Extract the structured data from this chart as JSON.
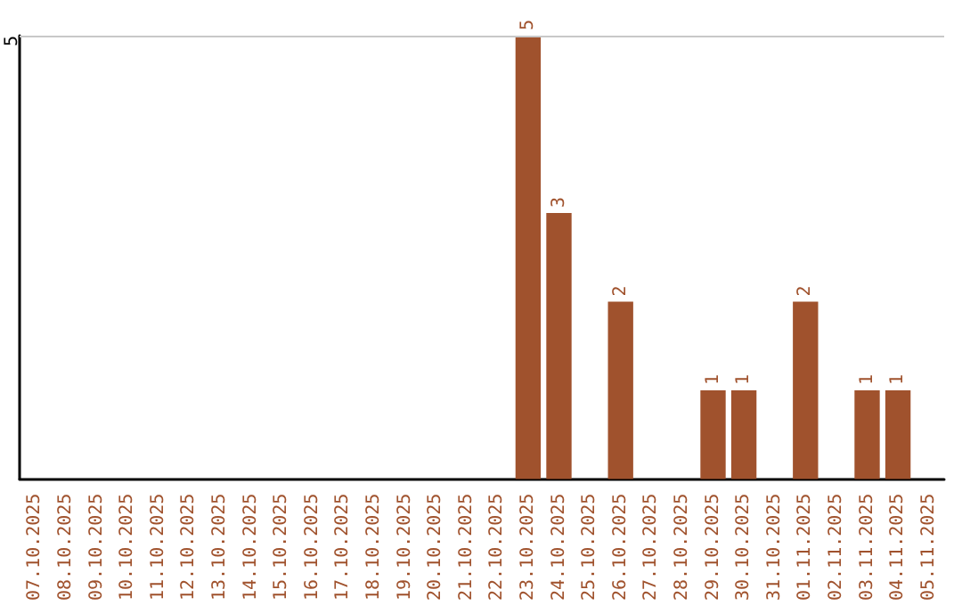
{
  "chart_data": {
    "type": "bar",
    "categories": [
      "07.10.2025",
      "08.10.2025",
      "09.10.2025",
      "10.10.2025",
      "11.10.2025",
      "12.10.2025",
      "13.10.2025",
      "14.10.2025",
      "15.10.2025",
      "16.10.2025",
      "17.10.2025",
      "18.10.2025",
      "19.10.2025",
      "20.10.2025",
      "21.10.2025",
      "22.10.2025",
      "23.10.2025",
      "24.10.2025",
      "25.10.2025",
      "26.10.2025",
      "27.10.2025",
      "28.10.2025",
      "29.10.2025",
      "30.10.2025",
      "31.10.2025",
      "01.11.2025",
      "02.11.2025",
      "03.11.2025",
      "04.11.2025",
      "05.11.2025"
    ],
    "values": [
      null,
      null,
      null,
      null,
      null,
      null,
      null,
      null,
      null,
      null,
      null,
      null,
      null,
      null,
      null,
      null,
      5,
      3,
      null,
      2,
      null,
      null,
      1,
      1,
      null,
      2,
      null,
      1,
      1,
      null
    ],
    "data_labels": true,
    "color": "#a0522d",
    "ylim": [
      0,
      5
    ],
    "ref_lines": [
      {
        "axis": "y",
        "value": 5,
        "label": "5",
        "color": "#c8c8c8"
      }
    ]
  }
}
